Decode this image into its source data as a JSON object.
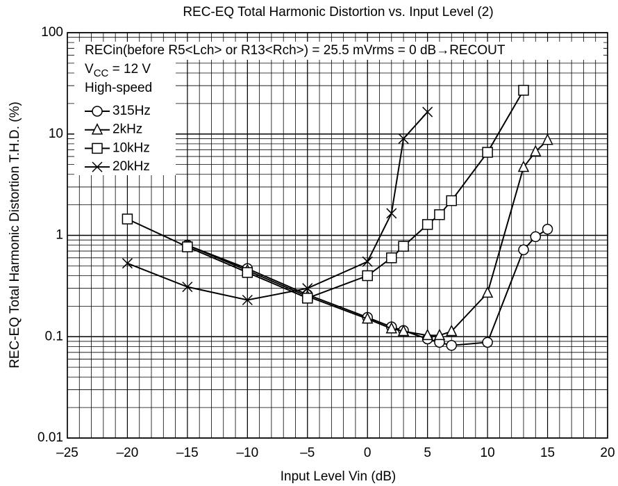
{
  "chart_data": {
    "type": "line",
    "title": "REC-EQ Total Harmonic Distortion vs. Input Level (2)",
    "x_label": "Input Level  Vin  (dB)",
    "y_label": "REC-EQ Total Harmonic Distortion  T.H.D.  (%)",
    "annotations": [
      "RECin(before R5<Lch> or R13<Rch>) = 25.5 mVrms = 0 dB→RECOUT",
      "High-speed"
    ],
    "vcc": [
      "V",
      "CC",
      " = 12 V"
    ],
    "log_y": true,
    "grid": true,
    "minor_grid": true,
    "xlim": [
      -25,
      20
    ],
    "xticks": [
      {
        "value": -25,
        "label": "–25"
      },
      {
        "value": -20,
        "label": "–20"
      },
      {
        "value": -15,
        "label": "–15"
      },
      {
        "value": -10,
        "label": "–10"
      },
      {
        "value": -5,
        "label": "–5"
      },
      0,
      5,
      10,
      15,
      20
    ],
    "ylim": [
      0.01,
      100
    ],
    "yticks": [
      0.01,
      0.1,
      1,
      10,
      100
    ],
    "series": [
      {
        "name": "315Hz",
        "color": "#000000",
        "marker": "circle",
        "x": [
          -15,
          -10,
          -5,
          0,
          2,
          3,
          5,
          6,
          7,
          10,
          13,
          14,
          15
        ],
        "values": [
          0.8,
          0.47,
          0.26,
          0.155,
          0.125,
          0.115,
          0.095,
          0.088,
          0.082,
          0.088,
          0.72,
          0.97,
          1.15
        ]
      },
      {
        "name": "2kHz",
        "color": "#000000",
        "marker": "triangle",
        "x": [
          -15,
          -10,
          -5,
          0,
          2,
          3,
          5,
          6,
          7,
          10,
          13,
          14,
          15
        ],
        "values": [
          0.8,
          0.45,
          0.25,
          0.15,
          0.12,
          0.113,
          0.103,
          0.103,
          0.113,
          0.27,
          4.7,
          6.7,
          8.7
        ]
      },
      {
        "name": "10kHz",
        "color": "#000000",
        "marker": "square",
        "x": [
          -20,
          -15,
          -10,
          -5,
          0,
          2,
          3,
          5,
          6,
          7,
          10,
          13
        ],
        "values": [
          1.45,
          0.77,
          0.43,
          0.24,
          0.4,
          0.6,
          0.78,
          1.28,
          1.6,
          2.2,
          6.6,
          27
        ]
      },
      {
        "name": "20kHz",
        "color": "#000000",
        "marker": "cross",
        "x": [
          -20,
          -15,
          -10,
          -5,
          0,
          2,
          3,
          5
        ],
        "values": [
          0.53,
          0.31,
          0.23,
          0.3,
          0.55,
          1.65,
          9,
          16.5
        ]
      }
    ]
  }
}
